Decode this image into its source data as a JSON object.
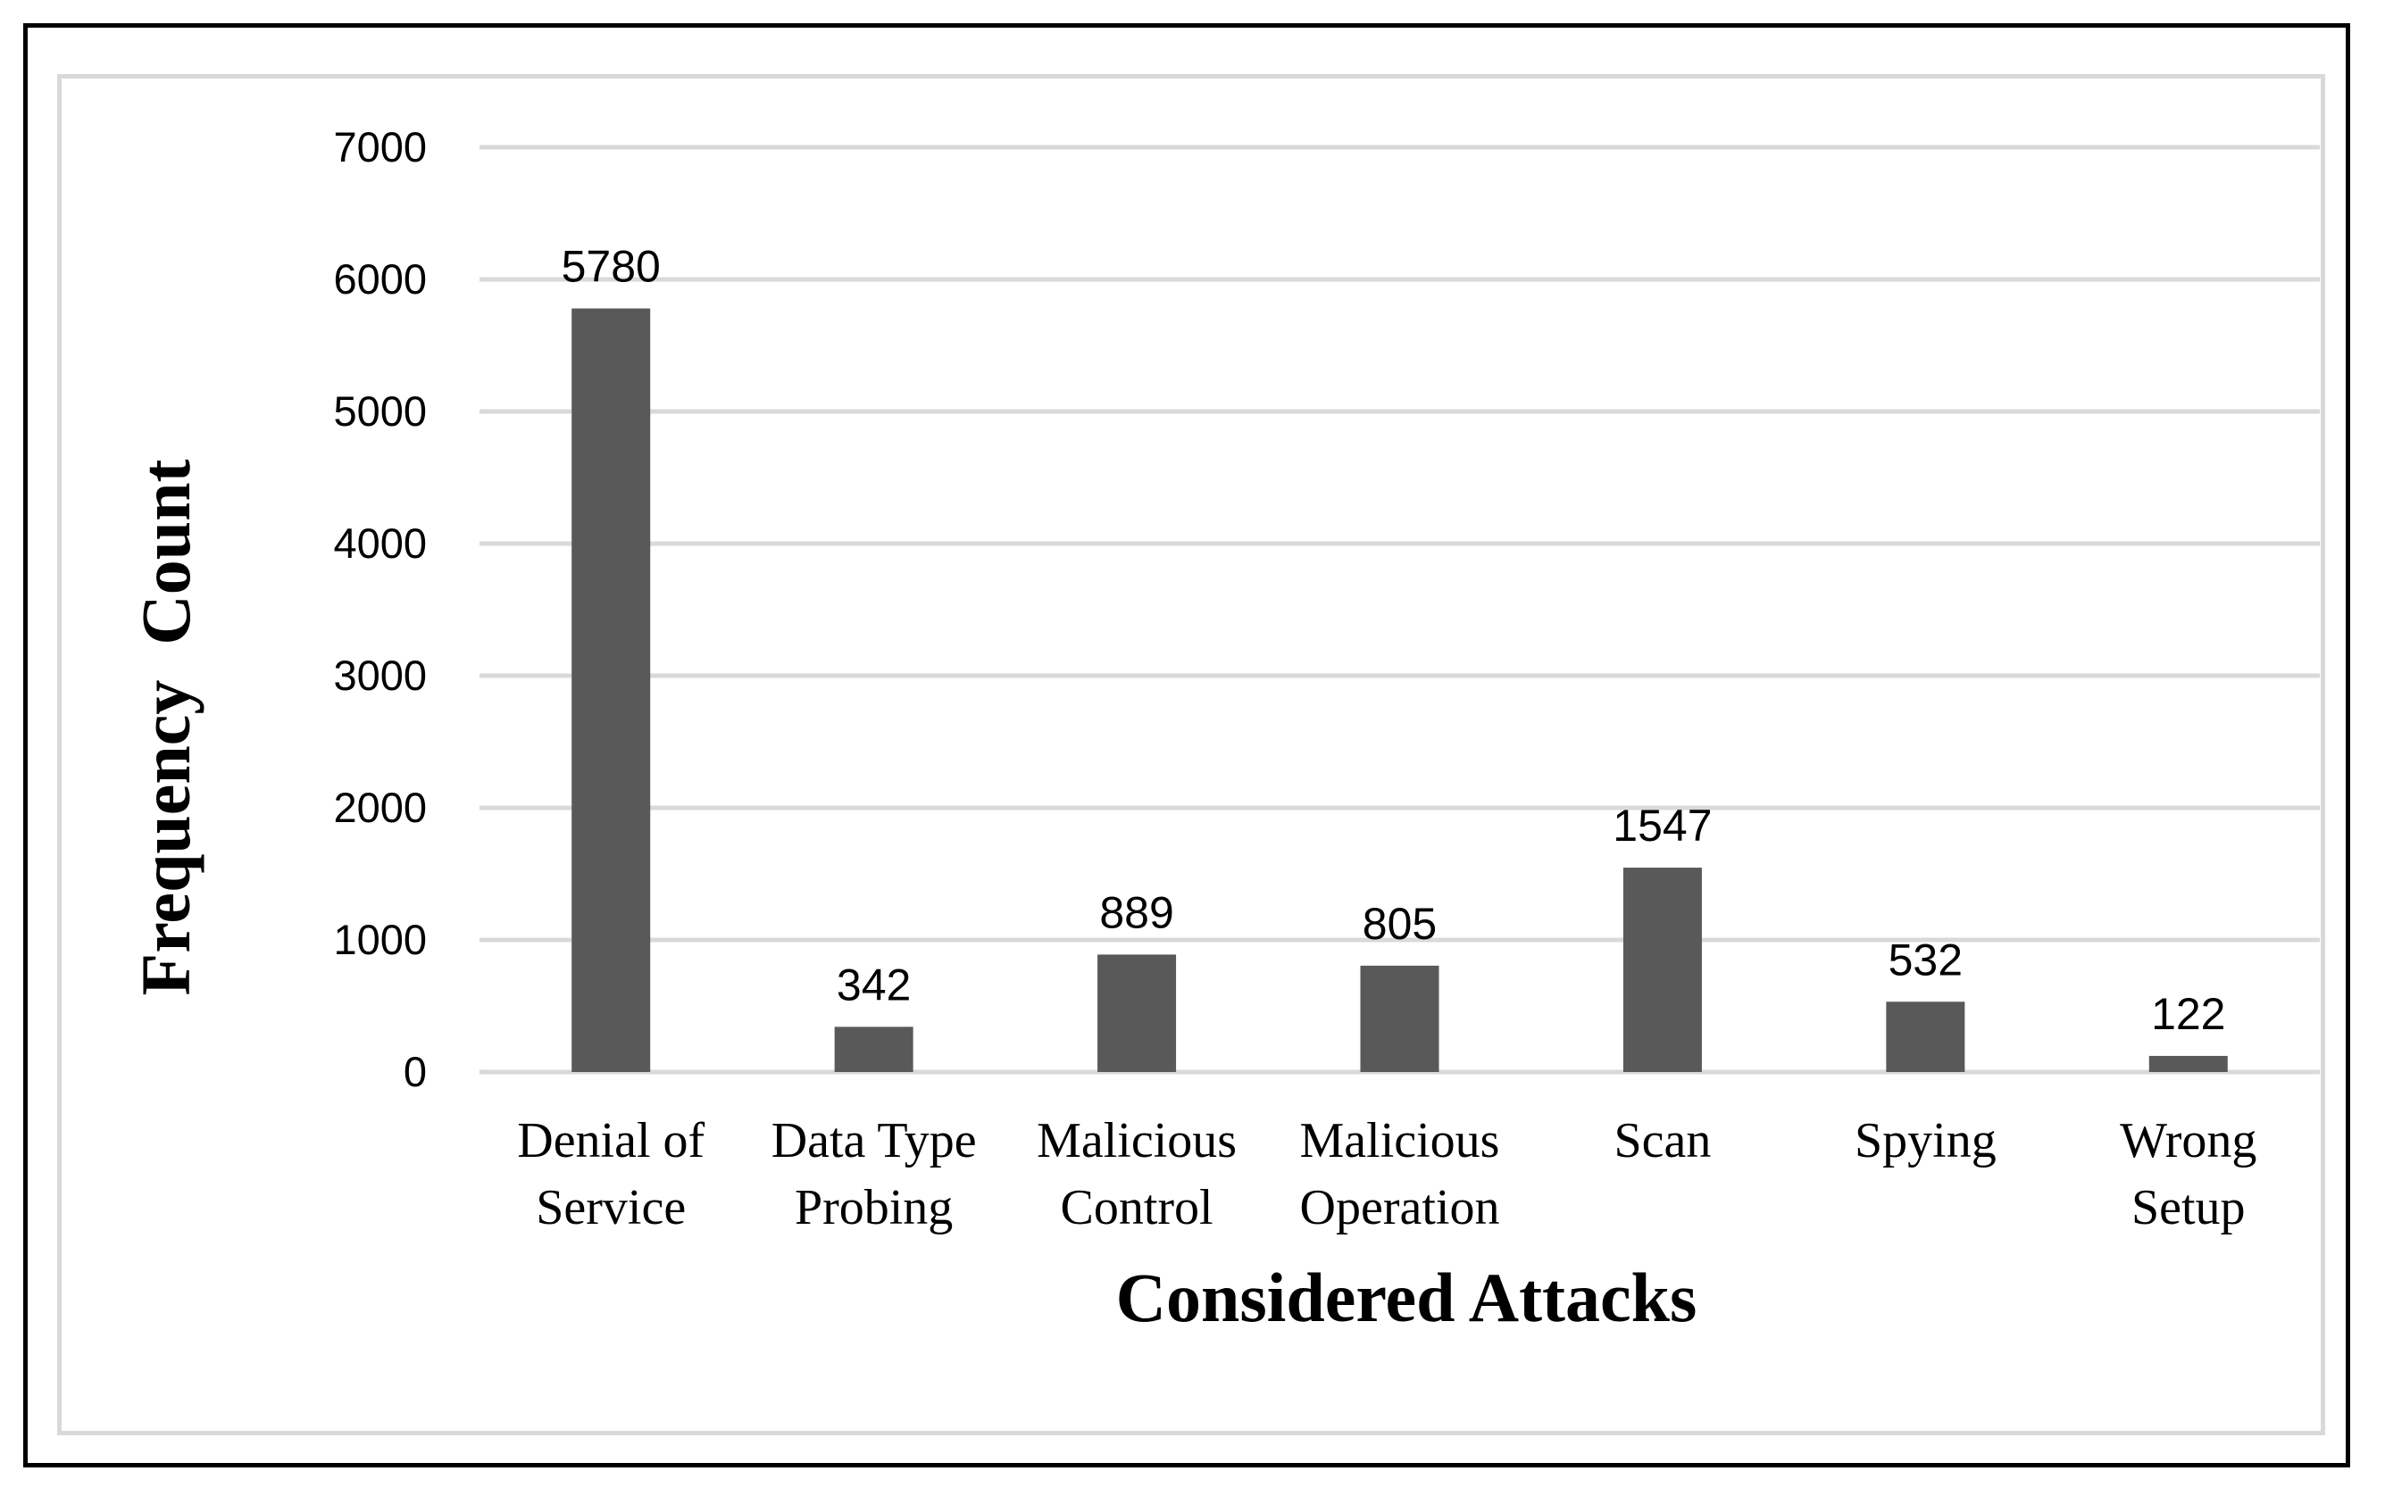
{
  "chart_data": {
    "type": "bar",
    "xlabel": "Considered Attacks",
    "ylabel": "Frequency  Count",
    "ylim": [
      0,
      7000
    ],
    "yticks": [
      0,
      1000,
      2000,
      3000,
      4000,
      5000,
      6000,
      7000
    ],
    "grid": true,
    "bar_color": "#595959",
    "grid_color": "#d9d9d9",
    "categories": [
      [
        "Denial of",
        "Service"
      ],
      [
        "Data Type",
        "Probing"
      ],
      [
        "Malicious",
        "Control"
      ],
      [
        "Malicious",
        "Operation"
      ],
      [
        "Scan"
      ],
      [
        "Spying"
      ],
      [
        "Wrong",
        "Setup"
      ]
    ],
    "values": [
      5780,
      342,
      889,
      805,
      1547,
      532,
      122
    ]
  }
}
